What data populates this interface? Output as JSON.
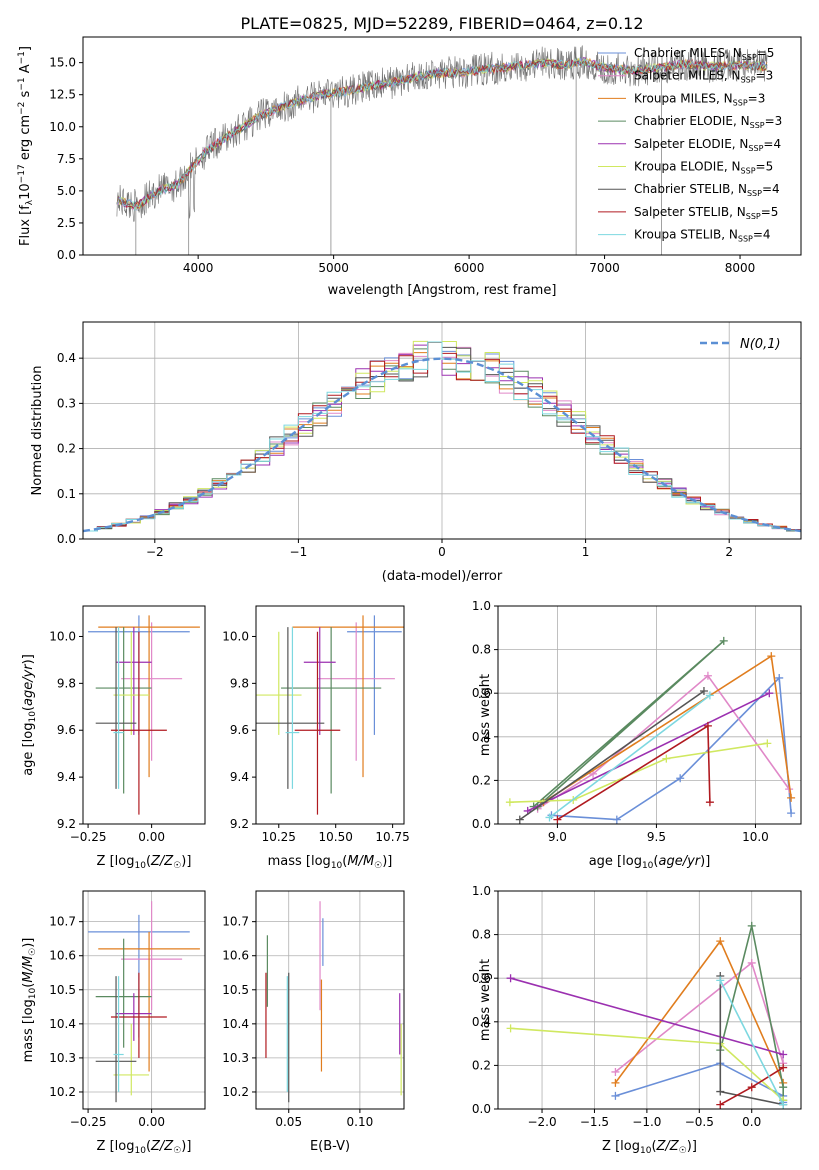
{
  "figure": {
    "title": "PLATE=0825, MJD=52289, FIBERID=0464, z=0.12"
  },
  "colors": {
    "Chabrier MILES": "#6a8fd8",
    "Salpeter MILES": "#e088c8",
    "Kroupa MILES": "#e07d1e",
    "Chabrier ELODIE": "#5a8a60",
    "Salpeter ELODIE": "#9b30b0",
    "Kroupa ELODIE": "#d0e860",
    "Chabrier STELIB": "#555555",
    "Salpeter STELIB": "#b01a20",
    "Kroupa STELIB": "#7dd8e0"
  },
  "chart_data": [
    {
      "type": "line",
      "id": "spectrum",
      "title": "PLATE=0825, MJD=52289, FIBERID=0464, z=0.12",
      "xlabel": "wavelength [Angstrom, rest frame]",
      "ylabel": "Flux [f_λ 10^-17 erg cm^-2 s^-1 A^-1]",
      "xlim": [
        3150,
        8450
      ],
      "ylim": [
        0,
        17
      ],
      "xticks": [
        4000,
        5000,
        6000,
        7000,
        8000
      ],
      "yticks": [
        0.0,
        2.5,
        5.0,
        7.5,
        10.0,
        12.5,
        15.0
      ],
      "grid": false,
      "legend_position": "right",
      "data_series_name": "",
      "spectrum_anchors": {
        "x": [
          3400,
          3550,
          3700,
          3850,
          3950,
          4050,
          4150,
          4300,
          4450,
          4600,
          4750,
          4900,
          5050,
          5200,
          5350,
          5500,
          5650,
          5800,
          5950,
          6100,
          6250,
          6400,
          6550,
          6700,
          6850,
          7000,
          7200,
          7400,
          7600,
          7800,
          8000,
          8200
        ],
        "y": [
          4.3,
          3.8,
          5.0,
          5.5,
          6.8,
          8.0,
          8.8,
          9.8,
          10.8,
          11.5,
          12.0,
          12.5,
          12.7,
          13.0,
          13.3,
          13.6,
          14.0,
          14.2,
          14.2,
          14.5,
          14.6,
          14.8,
          15.0,
          14.8,
          15.1,
          14.6,
          14.4,
          14.6,
          14.9,
          14.7,
          14.8,
          14.7
        ]
      },
      "series": [
        {
          "name": "Chabrier MILES",
          "n_ssp": "5"
        },
        {
          "name": "Salpeter MILES",
          "n_ssp": "3"
        },
        {
          "name": "Kroupa MILES",
          "n_ssp": "3"
        },
        {
          "name": "Chabrier ELODIE",
          "n_ssp": "3"
        },
        {
          "name": "Salpeter ELODIE",
          "n_ssp": "4"
        },
        {
          "name": "Kroupa ELODIE",
          "n_ssp": "5"
        },
        {
          "name": "Chabrier STELIB",
          "n_ssp": "4"
        },
        {
          "name": "Salpeter STELIB",
          "n_ssp": "5"
        },
        {
          "name": "Kroupa STELIB",
          "n_ssp": "4"
        }
      ]
    },
    {
      "type": "line",
      "id": "residuals",
      "xlabel": "(data-model)/error",
      "ylabel": "Normed distribution",
      "xlim": [
        -2.5,
        2.5
      ],
      "ylim": [
        0,
        0.48
      ],
      "xticks": [
        -2,
        -1,
        0,
        1,
        2
      ],
      "yticks": [
        0.0,
        0.1,
        0.2,
        0.3,
        0.4
      ],
      "grid": true,
      "legend_position": "top-right",
      "gaussian_label": "N(0,1)",
      "bin_width": 0.1,
      "bins_start": -2.5
    },
    {
      "type": "scatter",
      "id": "age_vs_Z",
      "xlabel": "Z [log10(Z/Z☉)]",
      "ylabel": "age [log10(age/yr)]",
      "xlim": [
        -0.27,
        0.21
      ],
      "ylim": [
        9.2,
        10.13
      ],
      "xticks": [
        -0.25,
        0.0
      ],
      "yticks": [
        9.2,
        9.4,
        9.6,
        9.8,
        10.0
      ],
      "grid": false,
      "points": [
        {
          "model": "Chabrier MILES",
          "x": -0.05,
          "y": 10.02,
          "xerr": 0.2,
          "ylo": 9.58,
          "yhi": 10.09
        },
        {
          "model": "Salpeter MILES",
          "x": 0.0,
          "y": 9.82,
          "xerr": 0.12,
          "ylo": 9.47,
          "yhi": 10.06
        },
        {
          "model": "Kroupa MILES",
          "x": -0.01,
          "y": 10.04,
          "xerr": 0.2,
          "ylo": 9.4,
          "yhi": 10.09
        },
        {
          "model": "Chabrier ELODIE",
          "x": -0.11,
          "y": 9.78,
          "xerr": 0.11,
          "ylo": 9.33,
          "yhi": 10.04
        },
        {
          "model": "Salpeter ELODIE",
          "x": -0.07,
          "y": 9.89,
          "xerr": 0.07,
          "ylo": 9.58,
          "yhi": 10.04
        },
        {
          "model": "Kroupa ELODIE",
          "x": -0.08,
          "y": 9.75,
          "xerr": 0.07,
          "ylo": 9.58,
          "yhi": 10.02
        },
        {
          "model": "Chabrier STELIB",
          "x": -0.14,
          "y": 9.63,
          "xerr": 0.08,
          "ylo": 9.35,
          "yhi": 10.04
        },
        {
          "model": "Salpeter STELIB",
          "x": -0.05,
          "y": 9.6,
          "xerr": 0.11,
          "ylo": 9.24,
          "yhi": 10.02
        },
        {
          "model": "Kroupa STELIB",
          "x": -0.13,
          "y": 9.59,
          "xerr": 0.02,
          "ylo": 9.35,
          "yhi": 10.04
        }
      ]
    },
    {
      "type": "scatter",
      "id": "age_vs_mass",
      "xlabel": "mass [log10(M/M☉)]",
      "ylabel": "",
      "xlim": [
        10.15,
        10.8
      ],
      "ylim": [
        9.2,
        10.13
      ],
      "xticks": [
        10.25,
        10.5,
        10.75
      ],
      "yticks": [
        9.2,
        9.4,
        9.6,
        9.8,
        10.0
      ],
      "grid": false,
      "points": [
        {
          "model": "Chabrier MILES",
          "x": 10.67,
          "y": 10.02,
          "xerr": 0.12,
          "ylo": 9.58,
          "yhi": 10.09
        },
        {
          "model": "Salpeter MILES",
          "x": 10.59,
          "y": 9.82,
          "xerr": 0.17,
          "ylo": 9.47,
          "yhi": 10.06
        },
        {
          "model": "Kroupa MILES",
          "x": 10.62,
          "y": 10.04,
          "xerr": 0.31,
          "ylo": 9.4,
          "yhi": 10.09
        },
        {
          "model": "Chabrier ELODIE",
          "x": 10.48,
          "y": 9.78,
          "xerr": 0.22,
          "ylo": 9.33,
          "yhi": 10.04
        },
        {
          "model": "Salpeter ELODIE",
          "x": 10.43,
          "y": 9.89,
          "xerr": 0.07,
          "ylo": 9.58,
          "yhi": 10.04
        },
        {
          "model": "Kroupa ELODIE",
          "x": 10.25,
          "y": 9.75,
          "xerr": 0.1,
          "ylo": 9.58,
          "yhi": 10.02
        },
        {
          "model": "Chabrier STELIB",
          "x": 10.29,
          "y": 9.63,
          "xerr": 0.16,
          "ylo": 9.35,
          "yhi": 10.04
        },
        {
          "model": "Salpeter STELIB",
          "x": 10.42,
          "y": 9.6,
          "xerr": 0.1,
          "ylo": 9.24,
          "yhi": 10.02
        },
        {
          "model": "Kroupa STELIB",
          "x": 10.31,
          "y": 9.59,
          "xerr": 0.03,
          "ylo": 9.35,
          "yhi": 10.04
        }
      ]
    },
    {
      "type": "line",
      "id": "massweight_vs_age",
      "xlabel": "age [log10(age/yr)]",
      "ylabel": "mass weight",
      "xlim": [
        8.7,
        10.23
      ],
      "ylim": [
        0,
        1.0
      ],
      "xticks": [
        9.0,
        9.5,
        10.0
      ],
      "yticks": [
        0.0,
        0.2,
        0.4,
        0.6,
        0.8,
        1.0
      ],
      "grid": true,
      "series": [
        {
          "model": "Chabrier MILES",
          "x": [
            8.97,
            9.3,
            9.62,
            10.12,
            10.18
          ],
          "y": [
            0.04,
            0.02,
            0.21,
            0.67,
            0.05
          ]
        },
        {
          "model": "Salpeter MILES",
          "x": [
            8.9,
            9.18,
            9.76,
            10.17
          ],
          "y": [
            0.07,
            0.23,
            0.68,
            0.16
          ]
        },
        {
          "model": "Kroupa MILES",
          "x": [
            8.93,
            10.08,
            10.18
          ],
          "y": [
            0.1,
            0.77,
            0.12
          ]
        },
        {
          "model": "Chabrier ELODIE",
          "x": [
            8.9,
            9.84,
            8.88
          ],
          "y": [
            0.08,
            0.84,
            0.08
          ]
        },
        {
          "model": "Salpeter ELODIE",
          "x": [
            8.85,
            10.07
          ],
          "y": [
            0.06,
            0.6
          ]
        },
        {
          "model": "Kroupa ELODIE",
          "x": [
            8.76,
            9.08,
            9.55,
            10.06
          ],
          "y": [
            0.1,
            0.11,
            0.3,
            0.37
          ]
        },
        {
          "model": "Chabrier STELIB",
          "x": [
            8.81,
            9.74
          ],
          "y": [
            0.02,
            0.61
          ]
        },
        {
          "model": "Salpeter STELIB",
          "x": [
            9.0,
            9.76,
            9.77
          ],
          "y": [
            0.02,
            0.45,
            0.1
          ]
        },
        {
          "model": "Kroupa STELIB",
          "x": [
            8.96,
            9.77
          ],
          "y": [
            0.03,
            0.59
          ]
        }
      ]
    },
    {
      "type": "scatter",
      "id": "mass_vs_Z",
      "xlabel": "Z [log10(Z/Z☉)]",
      "ylabel": "mass [log10(M/M☉)]",
      "xlim": [
        -0.27,
        0.21
      ],
      "ylim": [
        10.15,
        10.79
      ],
      "xticks": [
        -0.25,
        0.0
      ],
      "yticks": [
        10.2,
        10.3,
        10.4,
        10.5,
        10.6,
        10.7
      ],
      "grid": true,
      "points": [
        {
          "model": "Chabrier MILES",
          "x": -0.05,
          "y": 10.67,
          "xerr": 0.2,
          "ylo": 10.36,
          "yhi": 10.72
        },
        {
          "model": "Salpeter MILES",
          "x": 0.0,
          "y": 10.59,
          "xerr": 0.12,
          "ylo": 10.44,
          "yhi": 10.76
        },
        {
          "model": "Kroupa MILES",
          "x": -0.01,
          "y": 10.62,
          "xerr": 0.2,
          "ylo": 10.26,
          "yhi": 10.67
        },
        {
          "model": "Chabrier ELODIE",
          "x": -0.11,
          "y": 10.48,
          "xerr": 0.11,
          "ylo": 10.33,
          "yhi": 10.65
        },
        {
          "model": "Salpeter ELODIE",
          "x": -0.07,
          "y": 10.43,
          "xerr": 0.07,
          "ylo": 10.35,
          "yhi": 10.49
        },
        {
          "model": "Kroupa ELODIE",
          "x": -0.08,
          "y": 10.25,
          "xerr": 0.07,
          "ylo": 10.19,
          "yhi": 10.4
        },
        {
          "model": "Chabrier STELIB",
          "x": -0.14,
          "y": 10.29,
          "xerr": 0.08,
          "ylo": 10.17,
          "yhi": 10.54
        },
        {
          "model": "Salpeter STELIB",
          "x": -0.05,
          "y": 10.42,
          "xerr": 0.11,
          "ylo": 10.3,
          "yhi": 10.55
        },
        {
          "model": "Kroupa STELIB",
          "x": -0.13,
          "y": 10.31,
          "xerr": 0.02,
          "ylo": 10.2,
          "yhi": 10.54
        }
      ]
    },
    {
      "type": "scatter",
      "id": "mass_vs_EBV",
      "xlabel": "E(B-V)",
      "ylabel": "",
      "xlim": [
        0.027,
        0.131
      ],
      "ylim": [
        10.15,
        10.79
      ],
      "xticks": [
        0.05,
        0.1
      ],
      "yticks": [
        10.2,
        10.3,
        10.4,
        10.5,
        10.6,
        10.7
      ],
      "grid": true,
      "points": [
        {
          "model": "Chabrier MILES",
          "x": 0.074,
          "ylo": 10.57,
          "yhi": 10.71
        },
        {
          "model": "Salpeter MILES",
          "x": 0.072,
          "ylo": 10.44,
          "yhi": 10.76
        },
        {
          "model": "Kroupa MILES",
          "x": 0.073,
          "ylo": 10.26,
          "yhi": 10.53
        },
        {
          "model": "Chabrier ELODIE",
          "x": 0.035,
          "ylo": 10.45,
          "yhi": 10.66
        },
        {
          "model": "Salpeter ELODIE",
          "x": 0.128,
          "ylo": 10.31,
          "yhi": 10.49
        },
        {
          "model": "Kroupa ELODIE",
          "x": 0.129,
          "ylo": 10.19,
          "yhi": 10.4
        },
        {
          "model": "Chabrier STELIB",
          "x": 0.05,
          "ylo": 10.17,
          "yhi": 10.55
        },
        {
          "model": "Salpeter STELIB",
          "x": 0.034,
          "ylo": 10.3,
          "yhi": 10.55
        },
        {
          "model": "Kroupa STELIB",
          "x": 0.049,
          "ylo": 10.2,
          "yhi": 10.54
        }
      ]
    },
    {
      "type": "line",
      "id": "massweight_vs_Z",
      "xlabel": "Z [log10(Z/Z☉)]",
      "ylabel": "mass weight",
      "xlim": [
        -2.42,
        0.47
      ],
      "ylim": [
        0,
        1.0
      ],
      "xticks": [
        -2.0,
        -1.5,
        -1.0,
        -0.5,
        0.0
      ],
      "yticks": [
        0.0,
        0.2,
        0.4,
        0.6,
        0.8,
        1.0
      ],
      "grid": true,
      "series": [
        {
          "model": "Chabrier MILES",
          "x": [
            -1.3,
            -0.3,
            0.3,
            0.3
          ],
          "y": [
            0.06,
            0.21,
            0.06,
            0.03
          ]
        },
        {
          "model": "Salpeter MILES",
          "x": [
            -1.3,
            0.0,
            0.3
          ],
          "y": [
            0.17,
            0.67,
            0.21
          ]
        },
        {
          "model": "Kroupa MILES",
          "x": [
            -1.3,
            -0.3,
            0.3
          ],
          "y": [
            0.12,
            0.77,
            0.12
          ]
        },
        {
          "model": "Chabrier ELODIE",
          "x": [
            -0.3,
            0.0,
            0.3,
            0.3
          ],
          "y": [
            0.27,
            0.84,
            0.1,
            0.04
          ]
        },
        {
          "model": "Salpeter ELODIE",
          "x": [
            -2.3,
            0.3
          ],
          "y": [
            0.6,
            0.25
          ]
        },
        {
          "model": "Kroupa ELODIE",
          "x": [
            -2.3,
            -0.3,
            0.3
          ],
          "y": [
            0.37,
            0.3,
            0.04
          ]
        },
        {
          "model": "Chabrier STELIB",
          "x": [
            -0.3,
            -0.3,
            0.3
          ],
          "y": [
            0.61,
            0.08,
            0.02
          ]
        },
        {
          "model": "Salpeter STELIB",
          "x": [
            -0.3,
            0.0,
            0.3
          ],
          "y": [
            0.02,
            0.1,
            0.19
          ]
        },
        {
          "model": "Kroupa STELIB",
          "x": [
            -0.3,
            0.3
          ],
          "y": [
            0.59,
            0.02
          ]
        }
      ]
    }
  ]
}
